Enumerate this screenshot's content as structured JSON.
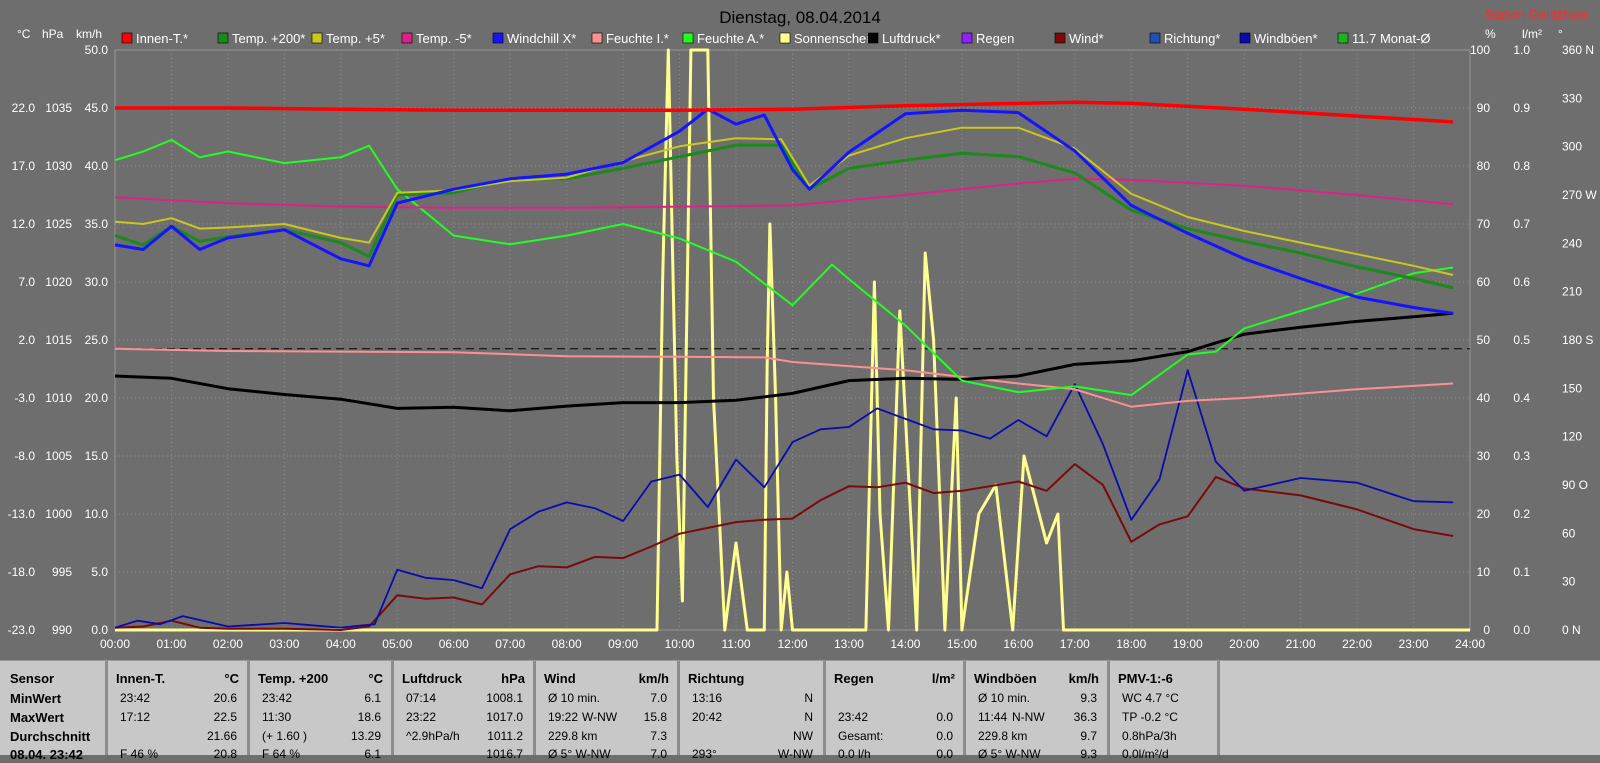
{
  "title": "Dienstag, 08.04.2014",
  "station": "Station Göritzhain",
  "colors": {
    "background": "#6e6e6e",
    "grid": "#8e8e8e",
    "text": "#ffffff",
    "station": "#ff2a2a"
  },
  "axis_units": {
    "left1": "°C",
    "left2": "hPa",
    "left3": "km/h",
    "right1": "%",
    "right2": "l/m²",
    "right3": "°"
  },
  "legend": [
    {
      "label": "Innen-T.*",
      "color": "#ff0000"
    },
    {
      "label": "Temp. +200*",
      "color": "#1a8a1a"
    },
    {
      "label": "Temp. +5*",
      "color": "#c8c81e"
    },
    {
      "label": "Temp. -5*",
      "color": "#e0208a"
    },
    {
      "label": "Windchill X*",
      "color": "#1414ff"
    },
    {
      "label": "Feuchte I.*",
      "color": "#ff9090"
    },
    {
      "label": "Feuchte A.*",
      "color": "#20ff20"
    },
    {
      "label": "Sonnenschein",
      "color": "#ffff90"
    },
    {
      "label": "Luftdruck*",
      "color": "#000000"
    },
    {
      "label": "Regen",
      "color": "#9020ff"
    },
    {
      "label": "Wind*",
      "color": "#7a0a0a"
    },
    {
      "label": "Richtung*",
      "color": "#2050b0"
    },
    {
      "label": "Windböen*",
      "color": "#0a0ab0"
    },
    {
      "label": "11.7 Monat-Ø",
      "color": "#20b020"
    }
  ],
  "chart_data": {
    "type": "line",
    "x_ticks": [
      "00:00",
      "01:00",
      "02:00",
      "03:00",
      "04:00",
      "05:00",
      "06:00",
      "07:00",
      "08:00",
      "09:00",
      "10:00",
      "11:00",
      "12:00",
      "13:00",
      "14:00",
      "15:00",
      "16:00",
      "17:00",
      "18:00",
      "19:00",
      "20:00",
      "21:00",
      "22:00",
      "23:00",
      "24:00"
    ],
    "y_axes": {
      "temp_c": [
        "22.0",
        "17.0",
        "12.0",
        "7.0",
        "2.0",
        "-3.0",
        "-8.0",
        "-13.0",
        "-18.0",
        "-23.0"
      ],
      "pressure_hpa": [
        "1035",
        "1030",
        "1025",
        "1020",
        "1015",
        "1010",
        "1005",
        "1000",
        "995",
        "990"
      ],
      "wind_kmh": [
        "50.0",
        "45.0",
        "40.0",
        "35.0",
        "30.0",
        "25.0",
        "20.0",
        "15.0",
        "10.0",
        "5.0",
        "0.0"
      ],
      "humidity_pct": [
        "100",
        "90",
        "80",
        "70",
        "60",
        "50",
        "40",
        "30",
        "20",
        "10",
        "0"
      ],
      "rain_lm2": [
        "1.0",
        "0.9",
        "0.8",
        "0.7",
        "0.6",
        "0.5",
        "0.4",
        "0.3",
        "0.2",
        "0.1",
        "0.0"
      ],
      "direction_deg": [
        "360 N",
        "330",
        "300",
        "270 W",
        "240",
        "210",
        "180 S",
        "150",
        "120",
        "90 O",
        "60",
        "30",
        "0 N"
      ]
    },
    "series": [
      {
        "name": "Innen-T.*",
        "axis": "temp_c",
        "x": [
          0,
          2,
          4,
          6,
          8,
          10,
          12,
          14,
          16,
          17,
          18,
          20,
          22,
          23.7
        ],
        "values": [
          22.0,
          22.0,
          21.9,
          21.8,
          21.8,
          21.8,
          21.9,
          22.2,
          22.4,
          22.5,
          22.4,
          21.9,
          21.3,
          20.8
        ]
      },
      {
        "name": "Temp. +200*",
        "axis": "temp_c",
        "x": [
          0,
          0.5,
          1,
          1.5,
          2,
          3,
          4,
          4.5,
          5,
          6,
          7,
          8,
          9,
          10,
          11,
          11.8,
          12.3,
          13,
          14,
          15,
          16,
          17,
          18,
          19,
          20,
          21,
          22,
          23,
          23.7
        ],
        "values": [
          11.0,
          10.2,
          11.8,
          10.5,
          10.9,
          11.5,
          10.4,
          9.2,
          14.5,
          14.7,
          15.9,
          15.9,
          16.8,
          17.8,
          18.8,
          18.8,
          15.0,
          16.8,
          17.5,
          18.1,
          17.8,
          16.4,
          13.2,
          11.6,
          10.5,
          9.5,
          8.3,
          7.3,
          6.5
        ]
      },
      {
        "name": "Temp. +5*",
        "axis": "temp_c",
        "x": [
          0,
          0.5,
          1,
          1.5,
          2,
          3,
          4,
          4.5,
          5,
          6,
          7,
          8,
          9,
          10,
          11,
          11.8,
          12.3,
          13,
          14,
          15,
          16,
          17,
          18,
          19,
          20,
          21,
          22,
          23,
          23.7
        ],
        "values": [
          12.2,
          12.0,
          12.5,
          11.6,
          11.7,
          12.0,
          10.8,
          10.4,
          14.7,
          14.9,
          15.7,
          16.0,
          17.4,
          18.7,
          19.4,
          19.3,
          15.3,
          17.9,
          19.4,
          20.3,
          20.3,
          18.5,
          14.6,
          12.6,
          11.4,
          10.4,
          9.4,
          8.4,
          7.6
        ]
      },
      {
        "name": "Temp. -5*",
        "axis": "temp_c",
        "x": [
          0,
          2,
          4,
          6,
          8,
          10,
          12,
          14,
          16,
          17,
          18,
          20,
          22,
          23.7
        ],
        "values": [
          14.3,
          13.8,
          13.5,
          13.4,
          13.4,
          13.5,
          13.6,
          14.5,
          15.5,
          15.9,
          15.8,
          15.3,
          14.5,
          13.7
        ]
      },
      {
        "name": "Windchill X*",
        "axis": "temp_c",
        "x": [
          0,
          0.5,
          1,
          1.5,
          2,
          3,
          4,
          4.5,
          5,
          6,
          7,
          8,
          9,
          10,
          10.5,
          11,
          11.5,
          12,
          12.3,
          13,
          14,
          15,
          16,
          17,
          18,
          19,
          20,
          21,
          22,
          23,
          23.7
        ],
        "values": [
          10.2,
          9.8,
          11.8,
          9.8,
          10.8,
          11.5,
          9.0,
          8.4,
          13.8,
          15.0,
          15.9,
          16.3,
          17.3,
          20.0,
          21.9,
          20.6,
          21.4,
          16.7,
          15.0,
          18.2,
          21.5,
          21.8,
          21.6,
          18.3,
          13.6,
          11.2,
          9.0,
          7.3,
          5.7,
          4.8,
          4.3
        ]
      },
      {
        "name": "Feuchte I.*",
        "axis": "humidity_pct",
        "x": [
          0,
          2,
          4,
          6,
          8,
          10,
          11.5,
          12,
          14,
          16,
          17,
          18,
          19,
          20,
          22,
          23.7
        ],
        "values": [
          48.5,
          48.1,
          48.0,
          47.9,
          47.2,
          47.1,
          47.0,
          46.2,
          44.8,
          42.5,
          41.5,
          38.5,
          39.5,
          40.0,
          41.5,
          42.5
        ]
      },
      {
        "name": "Feuchte A.*",
        "axis": "humidity_pct",
        "x": [
          0,
          0.5,
          1,
          1.5,
          2,
          3,
          4,
          4.5,
          5,
          6,
          7,
          8,
          9,
          10,
          11,
          12,
          12.7,
          13,
          14,
          15,
          16,
          17,
          18,
          19,
          19.5,
          20,
          21,
          22,
          23,
          23.7
        ],
        "values": [
          81.0,
          82.5,
          84.5,
          81.5,
          82.5,
          80.5,
          81.5,
          83.5,
          76.0,
          68.0,
          66.5,
          68.0,
          70.0,
          67.5,
          63.5,
          56.0,
          63.0,
          60.5,
          52.5,
          43.0,
          41.0,
          42.0,
          40.5,
          47.5,
          48.0,
          52.0,
          55.0,
          58.0,
          61.5,
          62.5
        ]
      },
      {
        "name": "Luftdruck*",
        "axis": "pressure_hpa",
        "x": [
          0,
          1,
          2,
          3,
          4,
          5,
          6,
          7,
          8,
          9,
          10,
          11,
          12,
          13,
          14,
          15,
          16,
          17,
          18,
          19,
          20,
          21,
          22,
          23,
          23.7
        ],
        "values": [
          1011.9,
          1011.7,
          1010.8,
          1010.3,
          1009.9,
          1009.1,
          1009.2,
          1008.9,
          1009.3,
          1009.6,
          1009.6,
          1009.8,
          1010.4,
          1011.5,
          1011.7,
          1011.6,
          1011.9,
          1012.9,
          1013.2,
          1014.0,
          1015.5,
          1016.1,
          1016.6,
          1017.0,
          1017.3
        ]
      },
      {
        "name": "Sonnenschein",
        "axis": "humidity_pct",
        "x": [
          0,
          9.6,
          9.7,
          9.8,
          9.95,
          10.05,
          10.2,
          10.35,
          10.5,
          10.6,
          10.8,
          11.0,
          11.2,
          11.5,
          11.55,
          11.6,
          11.7,
          11.8,
          11.9,
          12.0,
          13.3,
          13.45,
          13.55,
          13.7,
          13.9,
          14.2,
          14.35,
          14.5,
          14.7,
          14.9,
          15.0,
          15.3,
          15.6,
          15.9,
          16.1,
          16.5,
          16.7,
          16.8,
          17.0,
          24
        ],
        "values": [
          0,
          0,
          60,
          100,
          30,
          5,
          100,
          100,
          100,
          40,
          0,
          15,
          0,
          0,
          45,
          70,
          40,
          0,
          10,
          0,
          0,
          60,
          20,
          0,
          55,
          0,
          65,
          50,
          0,
          40,
          0,
          20,
          25,
          0,
          30,
          15,
          20,
          0,
          0,
          0
        ]
      },
      {
        "name": "Wind*",
        "axis": "wind_kmh",
        "x": [
          0,
          0.5,
          1,
          1.5,
          2,
          3,
          4,
          4.5,
          5,
          5.5,
          6,
          6.5,
          7,
          7.5,
          8,
          8.5,
          9,
          9.5,
          10,
          10.5,
          11,
          11.5,
          12,
          12.5,
          13,
          13.5,
          14,
          14.5,
          15,
          15.5,
          16,
          16.5,
          17,
          17.5,
          18,
          18.5,
          19,
          19.5,
          20,
          21,
          22,
          23,
          23.7
        ],
        "values": [
          0.2,
          0.3,
          0.8,
          0.2,
          0.1,
          0.1,
          0,
          0.3,
          3.0,
          2.7,
          2.8,
          2.2,
          4.8,
          5.5,
          5.4,
          6.3,
          6.2,
          7.2,
          8.3,
          8.8,
          9.3,
          9.5,
          9.6,
          11.2,
          12.4,
          12.3,
          12.7,
          11.8,
          12.0,
          12.4,
          12.8,
          12.0,
          14.3,
          12.5,
          7.6,
          9.1,
          9.8,
          13.2,
          12.2,
          11.6,
          10.4,
          8.7,
          8.1
        ]
      },
      {
        "name": "Windböen*",
        "axis": "wind_kmh",
        "x": [
          0,
          0.4,
          0.8,
          1.2,
          2,
          3,
          4,
          4.6,
          5,
          5.5,
          6,
          6.5,
          7,
          7.5,
          8,
          8.5,
          9,
          9.5,
          10,
          10.5,
          11,
          11.5,
          12,
          12.5,
          13,
          13.5,
          14,
          14.5,
          15,
          15.5,
          16,
          16.5,
          17,
          17.5,
          18,
          18.5,
          19,
          19.5,
          20,
          21,
          22,
          23,
          23.7
        ],
        "values": [
          0.2,
          0.8,
          0.5,
          1.2,
          0.3,
          0.6,
          0.2,
          0.5,
          5.2,
          4.5,
          4.3,
          3.6,
          8.7,
          10.2,
          11.0,
          10.5,
          9.4,
          12.8,
          13.4,
          10.6,
          14.7,
          12.3,
          16.2,
          17.3,
          17.5,
          19.1,
          18.2,
          17.3,
          17.2,
          16.5,
          18.1,
          16.7,
          21.2,
          16.0,
          9.5,
          13.0,
          22.4,
          14.5,
          12.0,
          13.1,
          12.7,
          11.1,
          11.0
        ]
      }
    ],
    "monthly_average": {
      "name": "11.7 Monat-Ø",
      "axis": "temp_c",
      "value": 11.7
    },
    "reference_line": {
      "axis": "humidity_pct",
      "value": 48.5
    }
  },
  "table": {
    "row_labels": [
      "Sensor",
      "MinWert",
      "MaxWert",
      "Durchschnitt",
      "08.04. 23:42"
    ],
    "columns": [
      {
        "header": "Innen-T.",
        "unit": "°C",
        "rows": [
          [
            "23:42",
            "",
            "20.6"
          ],
          [
            "17:12",
            "",
            "22.5"
          ],
          [
            "",
            "",
            "21.66"
          ],
          [
            "F 46 %",
            "",
            "20.8"
          ]
        ]
      },
      {
        "header": "Temp. +200",
        "unit": "°C",
        "rows": [
          [
            "23:42",
            "",
            "6.1"
          ],
          [
            "11:30",
            "",
            "18.6"
          ],
          [
            "(+ 1.60 )",
            "",
            "13.29"
          ],
          [
            "F 64 %",
            "",
            "6.1"
          ]
        ]
      },
      {
        "header": "Luftdruck",
        "unit": "hPa",
        "rows": [
          [
            "07:14",
            "",
            "1008.1"
          ],
          [
            "23:22",
            "",
            "1017.0"
          ],
          [
            "^2.9hPa/h",
            "",
            "1011.2"
          ],
          [
            "",
            "",
            "1016.7"
          ]
        ]
      },
      {
        "header": "Wind",
        "unit": "km/h",
        "rows": [
          [
            "Ø 10 min.",
            "",
            "7.0"
          ],
          [
            "19:22",
            "W-NW",
            "15.8"
          ],
          [
            "229.8 km",
            "",
            "7.3"
          ],
          [
            "Ø 5° W-NW",
            "",
            "7.0"
          ]
        ]
      },
      {
        "header": "Richtung",
        "unit": "",
        "rows": [
          [
            "13:16",
            "",
            "N"
          ],
          [
            "20:42",
            "",
            "N"
          ],
          [
            "",
            "",
            "NW"
          ],
          [
            "293°",
            "",
            "W-NW"
          ]
        ]
      },
      {
        "header": "Regen",
        "unit": "l/m²",
        "rows": [
          [
            "",
            "",
            ""
          ],
          [
            "23:42",
            "",
            "0.0"
          ],
          [
            "Gesamt:",
            "",
            "0.0"
          ],
          [
            "0.0 l/h",
            "",
            "0.0"
          ]
        ]
      },
      {
        "header": "Windböen",
        "unit": "km/h",
        "rows": [
          [
            "Ø 10 min.",
            "",
            "9.3"
          ],
          [
            "11:44",
            "N-NW",
            "36.3"
          ],
          [
            "229.8 km",
            "",
            "9.7"
          ],
          [
            "Ø 5° W-NW",
            "",
            "9.3"
          ]
        ]
      },
      {
        "header": "PMV-1:-6",
        "unit": "",
        "rows": [
          [
            "WC 4.7 °C",
            "",
            ""
          ],
          [
            "TP -0.2 °C",
            "",
            ""
          ],
          [
            "0.8hPa/3h",
            "",
            ""
          ],
          [
            "0.0l/m²/d",
            "",
            ""
          ]
        ]
      }
    ]
  }
}
